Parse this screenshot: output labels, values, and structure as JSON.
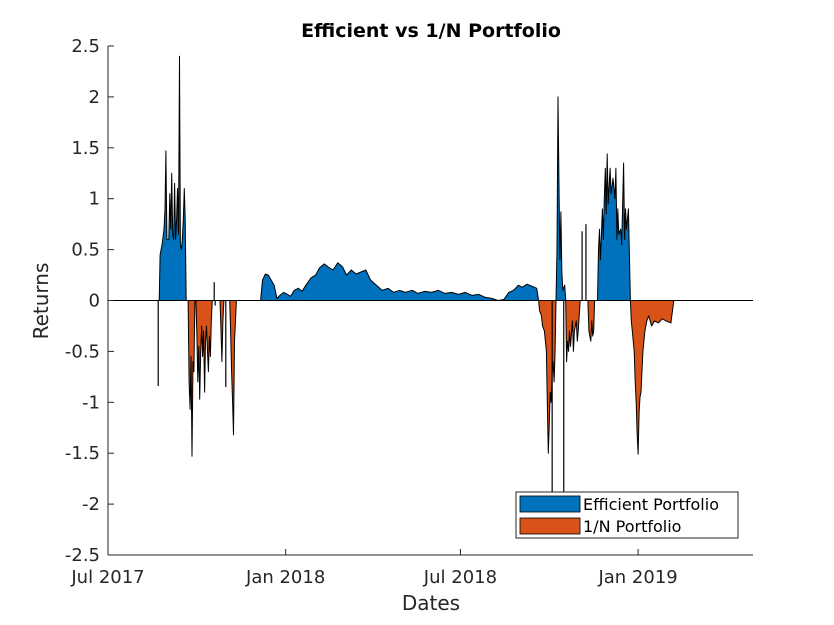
{
  "chart_data": {
    "type": "area",
    "title": "Efficient vs 1/N Portfolio",
    "xlabel": "Dates",
    "ylabel": "Returns",
    "xlim": [
      "2017-07-01",
      "2019-04-30"
    ],
    "ylim": [
      -2.5,
      2.5
    ],
    "x_ticks": [
      {
        "date": "2017-07-01",
        "label": "Jul 2017"
      },
      {
        "date": "2018-01-01",
        "label": "Jan 2018"
      },
      {
        "date": "2018-07-01",
        "label": "Jul 2018"
      },
      {
        "date": "2019-01-01",
        "label": "Jan 2019"
      }
    ],
    "y_ticks": [
      {
        "value": 2.5,
        "label": "2.5"
      },
      {
        "value": 2,
        "label": "2"
      },
      {
        "value": 1.5,
        "label": "1.5"
      },
      {
        "value": 1,
        "label": "1"
      },
      {
        "value": 0.5,
        "label": "0.5"
      },
      {
        "value": 0,
        "label": "0"
      },
      {
        "value": -0.5,
        "label": "-0.5"
      },
      {
        "value": -1,
        "label": "-1"
      },
      {
        "value": -1.5,
        "label": "-1.5"
      },
      {
        "value": -2,
        "label": "-2"
      },
      {
        "value": -2.5,
        "label": "-2.5"
      }
    ],
    "legend": {
      "placement": "bottom-right"
    },
    "grid": false,
    "series": [
      {
        "name": "Efficient Portfolio",
        "color": "#0072BD",
        "points": [
          [
            "2017-08-23",
            0.0
          ],
          [
            "2017-08-24",
            0.45
          ],
          [
            "2017-08-26",
            0.55
          ],
          [
            "2017-08-28",
            0.7
          ],
          [
            "2017-08-29",
            0.9
          ],
          [
            "2017-08-30",
            1.47
          ],
          [
            "2017-08-31",
            0.6
          ],
          [
            "2017-09-02",
            0.6
          ],
          [
            "2017-09-03",
            1.05
          ],
          [
            "2017-09-04",
            0.7
          ],
          [
            "2017-09-05",
            1.25
          ],
          [
            "2017-09-06",
            0.65
          ],
          [
            "2017-09-07",
            0.6
          ],
          [
            "2017-09-08",
            1.15
          ],
          [
            "2017-09-09",
            0.6
          ],
          [
            "2017-09-10",
            0.8
          ],
          [
            "2017-09-11",
            1.1
          ],
          [
            "2017-09-12",
            0.65
          ],
          [
            "2017-09-13",
            2.4
          ],
          [
            "2017-09-14",
            0.55
          ],
          [
            "2017-09-15",
            0.5
          ],
          [
            "2017-09-16",
            0.6
          ],
          [
            "2017-09-17",
            0.8
          ],
          [
            "2017-09-18",
            1.1
          ],
          [
            "2017-09-19",
            0.8
          ],
          [
            "2017-09-20",
            0.0
          ],
          [
            "2017-12-06",
            0.0
          ],
          [
            "2017-12-08",
            0.2
          ],
          [
            "2017-12-11",
            0.26
          ],
          [
            "2017-12-14",
            0.25
          ],
          [
            "2017-12-17",
            0.2
          ],
          [
            "2017-12-20",
            0.15
          ],
          [
            "2017-12-23",
            0.02
          ],
          [
            "2017-12-26",
            0.05
          ],
          [
            "2017-12-30",
            0.08
          ],
          [
            "2018-01-03",
            0.06
          ],
          [
            "2018-01-06",
            0.04
          ],
          [
            "2018-01-10",
            0.1
          ],
          [
            "2018-01-14",
            0.12
          ],
          [
            "2018-01-18",
            0.09
          ],
          [
            "2018-01-22",
            0.15
          ],
          [
            "2018-01-27",
            0.22
          ],
          [
            "2018-02-01",
            0.25
          ],
          [
            "2018-02-05",
            0.32
          ],
          [
            "2018-02-10",
            0.36
          ],
          [
            "2018-02-14",
            0.33
          ],
          [
            "2018-02-19",
            0.3
          ],
          [
            "2018-02-24",
            0.37
          ],
          [
            "2018-03-01",
            0.33
          ],
          [
            "2018-03-05",
            0.25
          ],
          [
            "2018-03-10",
            0.3
          ],
          [
            "2018-03-15",
            0.26
          ],
          [
            "2018-03-20",
            0.28
          ],
          [
            "2018-03-25",
            0.3
          ],
          [
            "2018-03-30",
            0.2
          ],
          [
            "2018-04-05",
            0.15
          ],
          [
            "2018-04-11",
            0.1
          ],
          [
            "2018-04-17",
            0.12
          ],
          [
            "2018-04-23",
            0.08
          ],
          [
            "2018-04-29",
            0.1
          ],
          [
            "2018-05-05",
            0.08
          ],
          [
            "2018-05-12",
            0.1
          ],
          [
            "2018-05-18",
            0.07
          ],
          [
            "2018-05-25",
            0.09
          ],
          [
            "2018-06-01",
            0.08
          ],
          [
            "2018-06-08",
            0.1
          ],
          [
            "2018-06-15",
            0.07
          ],
          [
            "2018-06-22",
            0.08
          ],
          [
            "2018-06-29",
            0.06
          ],
          [
            "2018-07-06",
            0.08
          ],
          [
            "2018-07-13",
            0.05
          ],
          [
            "2018-07-20",
            0.06
          ],
          [
            "2018-07-27",
            0.03
          ],
          [
            "2018-08-03",
            0.02
          ],
          [
            "2018-08-09",
            0.0
          ],
          [
            "2018-08-15",
            0.01
          ],
          [
            "2018-08-20",
            0.08
          ],
          [
            "2018-08-25",
            0.1
          ],
          [
            "2018-08-30",
            0.15
          ],
          [
            "2018-09-03",
            0.13
          ],
          [
            "2018-09-08",
            0.16
          ],
          [
            "2018-09-13",
            0.14
          ],
          [
            "2018-09-18",
            0.12
          ],
          [
            "2018-09-20",
            0.0
          ],
          [
            "2018-10-08",
            0.0
          ],
          [
            "2018-10-09",
            0.5
          ],
          [
            "2018-10-10",
            2.0
          ],
          [
            "2018-10-11",
            1.2
          ],
          [
            "2018-10-12",
            0.4
          ],
          [
            "2018-10-13",
            0.87
          ],
          [
            "2018-10-14",
            0.3
          ],
          [
            "2018-10-15",
            0.1
          ],
          [
            "2018-10-17",
            0.15
          ],
          [
            "2018-10-18",
            0.0
          ],
          [
            "2018-11-20",
            0.0
          ],
          [
            "2018-11-21",
            0.5
          ],
          [
            "2018-11-22",
            0.7
          ],
          [
            "2018-11-23",
            0.4
          ],
          [
            "2018-11-25",
            0.9
          ],
          [
            "2018-11-26",
            0.6
          ],
          [
            "2018-11-27",
            1.0
          ],
          [
            "2018-11-28",
            1.3
          ],
          [
            "2018-11-29",
            0.85
          ],
          [
            "2018-11-30",
            1.44
          ],
          [
            "2018-12-01",
            0.95
          ],
          [
            "2018-12-03",
            1.3
          ],
          [
            "2018-12-04",
            1.05
          ],
          [
            "2018-12-06",
            1.2
          ],
          [
            "2018-12-08",
            1.0
          ],
          [
            "2018-12-09",
            1.3
          ],
          [
            "2018-12-10",
            0.6
          ],
          [
            "2018-12-11",
            0.9
          ],
          [
            "2018-12-12",
            0.65
          ],
          [
            "2018-12-14",
            0.7
          ],
          [
            "2018-12-15",
            0.55
          ],
          [
            "2018-12-17",
            1.35
          ],
          [
            "2018-12-18",
            0.6
          ],
          [
            "2018-12-19",
            0.9
          ],
          [
            "2018-12-20",
            0.7
          ],
          [
            "2018-12-22",
            0.9
          ],
          [
            "2018-12-24",
            0.0
          ]
        ]
      },
      {
        "name": "1/N Portfolio",
        "color": "#D95319",
        "points": [
          [
            "2017-09-22",
            0.0
          ],
          [
            "2017-09-23",
            -0.8
          ],
          [
            "2017-09-24",
            -1.07
          ],
          [
            "2017-09-25",
            -0.55
          ],
          [
            "2017-09-26",
            -1.53
          ],
          [
            "2017-09-27",
            -0.6
          ],
          [
            "2017-09-28",
            -0.7
          ],
          [
            "2017-09-29",
            0.0
          ],
          [
            "2017-09-30",
            0.0
          ],
          [
            "2017-10-01",
            -0.3
          ],
          [
            "2017-10-02",
            -0.8
          ],
          [
            "2017-10-03",
            -0.45
          ],
          [
            "2017-10-04",
            -0.97
          ],
          [
            "2017-10-05",
            -0.5
          ],
          [
            "2017-10-06",
            -0.25
          ],
          [
            "2017-10-07",
            -0.55
          ],
          [
            "2017-10-08",
            -0.3
          ],
          [
            "2017-10-09",
            -0.9
          ],
          [
            "2017-10-10",
            -0.4
          ],
          [
            "2017-10-11",
            -0.25
          ],
          [
            "2017-10-12",
            -0.5
          ],
          [
            "2017-10-13",
            -0.7
          ],
          [
            "2017-10-14",
            -0.35
          ],
          [
            "2017-10-15",
            -0.55
          ],
          [
            "2017-10-16",
            -0.2
          ],
          [
            "2017-10-17",
            0.0
          ],
          [
            "2017-10-25",
            0.0
          ],
          [
            "2017-10-26",
            -0.3
          ],
          [
            "2017-10-27",
            -0.6
          ],
          [
            "2017-10-28",
            -0.2
          ],
          [
            "2017-10-29",
            0.0
          ],
          [
            "2017-11-04",
            0.0
          ],
          [
            "2017-11-05",
            -0.3
          ],
          [
            "2017-11-06",
            -0.7
          ],
          [
            "2017-11-07",
            -1.0
          ],
          [
            "2017-11-08",
            -1.32
          ],
          [
            "2017-11-09",
            -0.4
          ],
          [
            "2017-11-10",
            -0.2
          ],
          [
            "2017-11-11",
            0.0
          ],
          [
            "2018-09-20",
            0.0
          ],
          [
            "2018-09-21",
            -0.1
          ],
          [
            "2018-09-23",
            -0.15
          ],
          [
            "2018-09-24",
            -0.25
          ],
          [
            "2018-09-26",
            -0.3
          ],
          [
            "2018-09-28",
            -0.5
          ],
          [
            "2018-09-29",
            -1.0
          ],
          [
            "2018-09-30",
            -1.5
          ],
          [
            "2018-10-01",
            -1.2
          ],
          [
            "2018-10-02",
            -0.9
          ],
          [
            "2018-10-03",
            -1.0
          ],
          [
            "2018-10-04",
            -0.7
          ],
          [
            "2018-10-05",
            -0.6
          ],
          [
            "2018-10-06",
            -0.8
          ],
          [
            "2018-10-07",
            -0.5
          ],
          [
            "2018-10-08",
            0.0
          ],
          [
            "2018-10-18",
            0.0
          ],
          [
            "2018-10-19",
            -0.6
          ],
          [
            "2018-10-20",
            -0.4
          ],
          [
            "2018-10-21",
            -0.5
          ],
          [
            "2018-10-22",
            -0.3
          ],
          [
            "2018-10-23",
            -0.45
          ],
          [
            "2018-10-25",
            -0.2
          ],
          [
            "2018-10-26",
            -0.5
          ],
          [
            "2018-10-27",
            -0.3
          ],
          [
            "2018-10-29",
            -0.2
          ],
          [
            "2018-10-30",
            -0.4
          ],
          [
            "2018-10-31",
            -0.3
          ],
          [
            "2018-11-02",
            0.0
          ],
          [
            "2018-11-10",
            0.0
          ],
          [
            "2018-11-11",
            -0.3
          ],
          [
            "2018-11-13",
            -0.4
          ],
          [
            "2018-11-14",
            -0.2
          ],
          [
            "2018-11-15",
            -0.35
          ],
          [
            "2018-11-16",
            -0.3
          ],
          [
            "2018-11-17",
            0.0
          ],
          [
            "2018-12-24",
            0.0
          ],
          [
            "2018-12-25",
            -0.2
          ],
          [
            "2018-12-26",
            -0.3
          ],
          [
            "2018-12-28",
            -0.5
          ],
          [
            "2018-12-29",
            -0.8
          ],
          [
            "2018-12-30",
            -1.0
          ],
          [
            "2018-12-31",
            -1.3
          ],
          [
            "2019-01-01",
            -1.51
          ],
          [
            "2019-01-02",
            -1.1
          ],
          [
            "2019-01-03",
            -0.95
          ],
          [
            "2019-01-04",
            -0.9
          ],
          [
            "2019-01-06",
            -0.5
          ],
          [
            "2019-01-08",
            -0.3
          ],
          [
            "2019-01-10",
            -0.2
          ],
          [
            "2019-01-12",
            -0.15
          ],
          [
            "2019-01-15",
            -0.25
          ],
          [
            "2019-01-18",
            -0.2
          ],
          [
            "2019-01-22",
            -0.22
          ],
          [
            "2019-01-26",
            -0.18
          ],
          [
            "2019-01-30",
            -0.2
          ],
          [
            "2019-02-04",
            -0.22
          ],
          [
            "2019-02-07",
            0.0
          ]
        ]
      }
    ],
    "spikes": [
      {
        "date": "2017-08-22",
        "value": -0.84
      },
      {
        "date": "2017-10-19",
        "value": 0.18
      },
      {
        "date": "2017-10-20",
        "value": -0.05
      },
      {
        "date": "2017-10-31",
        "value": -0.85
      },
      {
        "date": "2018-10-04",
        "value": -1.88
      },
      {
        "date": "2018-10-16",
        "value": -1.88
      },
      {
        "date": "2018-11-04",
        "value": 0.68
      },
      {
        "date": "2018-11-08",
        "value": 0.75
      }
    ]
  }
}
